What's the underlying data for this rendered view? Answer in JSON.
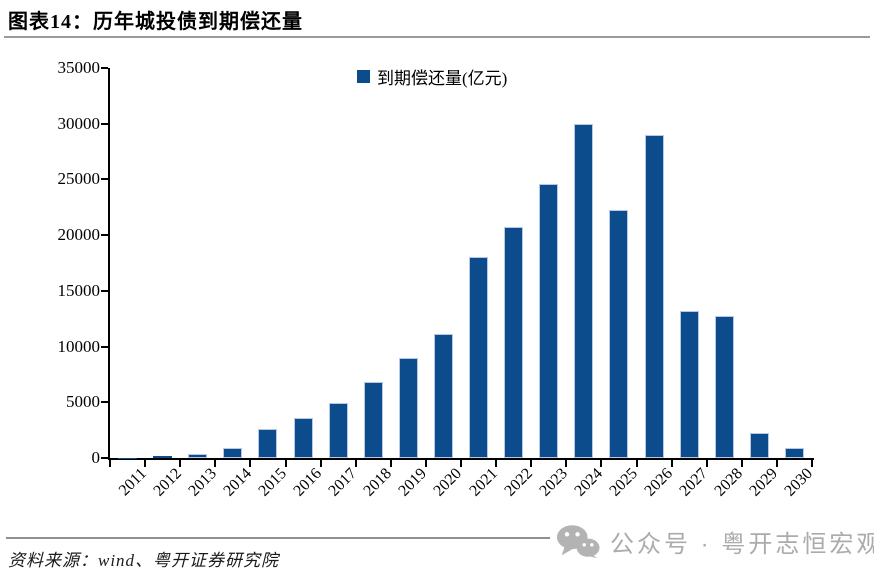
{
  "title": "图表14：历年城投债到期偿还量",
  "legend": "到期偿还量(亿元)",
  "source": "资料来源：wind、粤开证券研究院",
  "watermark": {
    "icon": "wechat-icon",
    "text": "公众号 · 粤开志恒宏观"
  },
  "colors": {
    "bar": "#0D4C8C",
    "bar_edge": "#B7C9E2",
    "axis": "#000000",
    "title_rule": "#9A9A9A",
    "footer_rule": "#909090",
    "watermark_gray": "#ABABAB"
  },
  "chart_data": {
    "type": "bar",
    "title": "历年城投债到期偿还量",
    "legend_entries": [
      "到期偿还量(亿元)"
    ],
    "legend_position": "top-center",
    "categories": [
      "2011",
      "2012",
      "2013",
      "2014",
      "2015",
      "2016",
      "2017",
      "2018",
      "2019",
      "2020",
      "2021",
      "2022",
      "2023",
      "2024",
      "2025",
      "2026",
      "2027",
      "2028",
      "2029",
      "2030"
    ],
    "values": [
      30,
      150,
      400,
      900,
      2600,
      3600,
      4900,
      6800,
      9000,
      11100,
      18000,
      20700,
      24600,
      30000,
      22300,
      29000,
      13200,
      12700,
      2200,
      900
    ],
    "xlabel": "",
    "ylabel": "亿元",
    "ylim": [
      0,
      35000
    ],
    "yticks": [
      0,
      5000,
      10000,
      15000,
      20000,
      25000,
      30000,
      35000
    ],
    "grid": false
  }
}
